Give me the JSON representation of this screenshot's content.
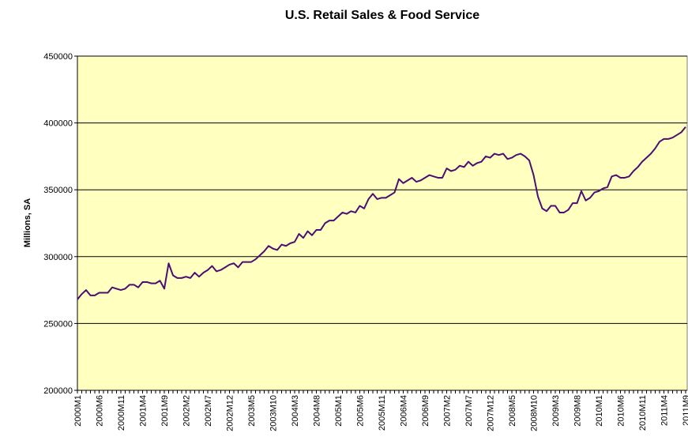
{
  "chart_data": {
    "type": "line",
    "title": "U.S. Retail Sales & Food Service",
    "y_label": "Millions, SA",
    "categories": [
      "2000M1",
      null,
      null,
      null,
      null,
      "2000M6",
      null,
      null,
      null,
      null,
      "2000M11",
      null,
      null,
      null,
      null,
      "2001M4",
      null,
      null,
      null,
      null,
      "2001M9",
      null,
      null,
      null,
      null,
      "2002M2",
      null,
      null,
      null,
      null,
      "2002M7",
      null,
      null,
      null,
      null,
      "2002M12",
      null,
      null,
      null,
      null,
      "2003M5",
      null,
      null,
      null,
      null,
      "2003M10",
      null,
      null,
      null,
      null,
      "2004M3",
      null,
      null,
      null,
      null,
      "2004M8",
      null,
      null,
      null,
      null,
      "2005M1",
      null,
      null,
      null,
      null,
      "2005M6",
      null,
      null,
      null,
      null,
      "2005M11",
      null,
      null,
      null,
      null,
      "2006M4",
      null,
      null,
      null,
      null,
      "2006M9",
      null,
      null,
      null,
      null,
      "2007M2",
      null,
      null,
      null,
      null,
      "2007M7",
      null,
      null,
      null,
      null,
      "2007M12",
      null,
      null,
      null,
      null,
      "2008M5",
      null,
      null,
      null,
      null,
      "2008M10",
      null,
      null,
      null,
      null,
      "2009M3",
      null,
      null,
      null,
      null,
      "2009M8",
      null,
      null,
      null,
      null,
      "2010M1",
      null,
      null,
      null,
      null,
      "2010M6",
      null,
      null,
      null,
      null,
      "2010M11",
      null,
      null,
      null,
      null,
      "2011M4",
      null,
      null,
      null,
      null,
      "2011M9"
    ],
    "series": [
      {
        "name": "Retail Sales & Food Service",
        "color": "#4b0f72",
        "values": [
          268000,
          272000,
          275000,
          271000,
          271000,
          273000,
          273000,
          273000,
          277000,
          276000,
          275000,
          276000,
          279000,
          279000,
          277000,
          281000,
          281000,
          280000,
          280000,
          282000,
          276000,
          295000,
          286000,
          284000,
          284000,
          285000,
          284000,
          288000,
          285000,
          288000,
          290000,
          293000,
          289000,
          290000,
          292000,
          294000,
          295000,
          292000,
          296000,
          296000,
          296000,
          298000,
          301000,
          304000,
          308000,
          306000,
          305000,
          309000,
          308000,
          310000,
          311000,
          317000,
          314000,
          319000,
          316000,
          320000,
          320000,
          325000,
          327000,
          327000,
          330000,
          333000,
          332000,
          334000,
          333000,
          338000,
          336000,
          343000,
          347000,
          343000,
          344000,
          344000,
          346000,
          348000,
          358000,
          355000,
          357000,
          359000,
          356000,
          357000,
          359000,
          361000,
          360000,
          359000,
          359000,
          366000,
          364000,
          365000,
          368000,
          367000,
          371000,
          368000,
          370000,
          371000,
          375000,
          374000,
          377000,
          376000,
          377000,
          373000,
          374000,
          376000,
          377000,
          375000,
          372000,
          361000,
          345000,
          336000,
          334000,
          338000,
          338000,
          333000,
          333000,
          335000,
          340000,
          340000,
          349000,
          342000,
          344000,
          348000,
          349000,
          351000,
          352000,
          360000,
          361000,
          359000,
          359000,
          360000,
          364000,
          367000,
          371000,
          374000,
          377000,
          381000,
          386000,
          388000,
          388000,
          389000,
          391000,
          393000,
          397000
        ]
      }
    ],
    "ylim": [
      200000,
      450000
    ],
    "yticks": [
      200000,
      250000,
      300000,
      350000,
      400000,
      450000
    ],
    "grid": true,
    "plot_background": "#ffffc0"
  }
}
